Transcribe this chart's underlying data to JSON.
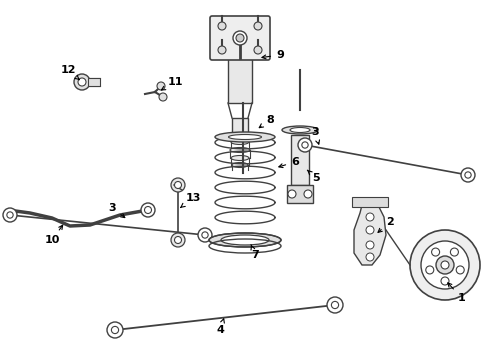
{
  "bg_color": "#ffffff",
  "line_color": "#404040",
  "label_color": "#000000",
  "figsize": [
    4.9,
    3.6
  ],
  "dpi": 100
}
